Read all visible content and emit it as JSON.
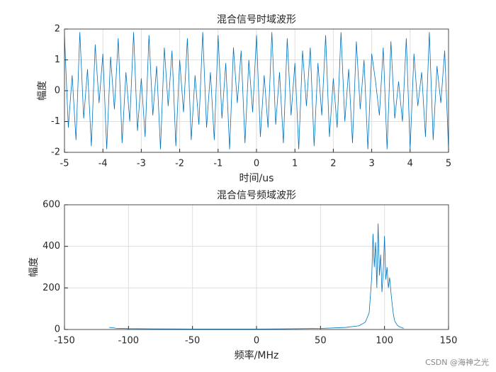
{
  "chart_data": [
    {
      "type": "line",
      "title": "混合信号时域波形",
      "xlabel": "时间/us",
      "ylabel": "幅度",
      "grid": true,
      "color": "#0072BD",
      "xlim": [
        -5,
        5
      ],
      "ylim": [
        -2,
        2
      ],
      "xticks": [
        -5,
        -4,
        -3,
        -2,
        -1,
        0,
        1,
        2,
        3,
        4,
        5
      ],
      "yticks": [
        -2,
        -1,
        0,
        1,
        2
      ],
      "x": [
        -5,
        -4.9,
        -4.8,
        -4.7,
        -4.6,
        -4.5,
        -4.4,
        -4.3,
        -4.2,
        -4.1,
        -4,
        -3.9,
        -3.8,
        -3.7,
        -3.6,
        -3.5,
        -3.4,
        -3.3,
        -3.2,
        -3.1,
        -3,
        -2.9,
        -2.8,
        -2.7,
        -2.6,
        -2.5,
        -2.4,
        -2.3,
        -2.2,
        -2.1,
        -2,
        -1.9,
        -1.8,
        -1.7,
        -1.6,
        -1.5,
        -1.4,
        -1.3,
        -1.2,
        -1.1,
        -1,
        -0.9,
        -0.8,
        -0.7,
        -0.6,
        -0.5,
        -0.4,
        -0.3,
        -0.2,
        -0.1,
        0,
        0.1,
        0.2,
        0.3,
        0.4,
        0.5,
        0.6,
        0.7,
        0.8,
        0.9,
        1,
        1.1,
        1.2,
        1.3,
        1.4,
        1.5,
        1.6,
        1.7,
        1.8,
        1.9,
        2,
        2.1,
        2.2,
        2.3,
        2.4,
        2.5,
        2.6,
        2.7,
        2.8,
        2.9,
        3,
        3.1,
        3.2,
        3.3,
        3.4,
        3.5,
        3.6,
        3.7,
        3.8,
        3.9,
        4,
        4.1,
        4.2,
        4.3,
        4.4,
        4.5,
        4.6,
        4.7,
        4.8,
        4.9,
        5
      ],
      "values": [
        1.8,
        -1.2,
        0.5,
        -1.6,
        1.9,
        -0.9,
        0.7,
        -1.8,
        1.5,
        -0.4,
        1.2,
        -1.9,
        1.1,
        -0.6,
        1.7,
        -1.7,
        0.6,
        -1.0,
        1.9,
        -1.3,
        0.4,
        -1.5,
        1.8,
        -0.8,
        0.8,
        -1.9,
        1.4,
        -0.5,
        1.3,
        -1.8,
        1.0,
        -0.7,
        1.7,
        -1.6,
        0.5,
        -1.1,
        1.9,
        -1.2,
        0.6,
        -1.6,
        1.8,
        -0.9,
        0.9,
        -1.9,
        1.4,
        -0.4,
        1.3,
        -1.7,
        1.0,
        -0.7,
        1.8,
        -1.5,
        0.5,
        -1.2,
        1.9,
        -1.1,
        0.6,
        -1.7,
        1.7,
        -0.8,
        0.9,
        -1.9,
        1.3,
        -0.5,
        1.4,
        -1.8,
        0.9,
        -0.8,
        1.8,
        -1.5,
        0.4,
        -1.2,
        1.9,
        -1.0,
        0.7,
        -1.7,
        1.6,
        -0.6,
        1.0,
        -1.9,
        1.2,
        0.3,
        -0.8,
        1.4,
        -1.9,
        1.6,
        -0.9,
        0.3,
        -1.0,
        1.7,
        -1.9,
        1.2,
        -0.5,
        0.6,
        -1.5,
        1.9,
        -1.6,
        0.8,
        -0.4,
        1.3,
        -1.9
      ]
    },
    {
      "type": "line",
      "title": "混合信号频域波形",
      "xlabel": "频率/MHz",
      "ylabel": "幅度",
      "grid": true,
      "color": "#0072BD",
      "xlim": [
        -150,
        150
      ],
      "ylim": [
        0,
        600
      ],
      "xticks": [
        -150,
        -100,
        -50,
        0,
        50,
        100,
        150
      ],
      "yticks": [
        0,
        200,
        400,
        600
      ],
      "x": [
        -115,
        -112,
        -110,
        -100,
        -80,
        -50,
        -20,
        0,
        20,
        50,
        70,
        80,
        85,
        88,
        90,
        91,
        92,
        93,
        94,
        95,
        96,
        97,
        98,
        99,
        100,
        101,
        102,
        103,
        104,
        105,
        106,
        107,
        108,
        110,
        112,
        114,
        115
      ],
      "values": [
        10,
        8,
        6,
        4,
        3,
        2,
        2,
        2,
        3,
        5,
        10,
        18,
        35,
        80,
        250,
        460,
        300,
        420,
        200,
        510,
        260,
        360,
        180,
        280,
        450,
        240,
        300,
        200,
        250,
        180,
        120,
        70,
        40,
        20,
        12,
        8,
        5
      ]
    }
  ],
  "watermark": "CSDN @海神之光"
}
